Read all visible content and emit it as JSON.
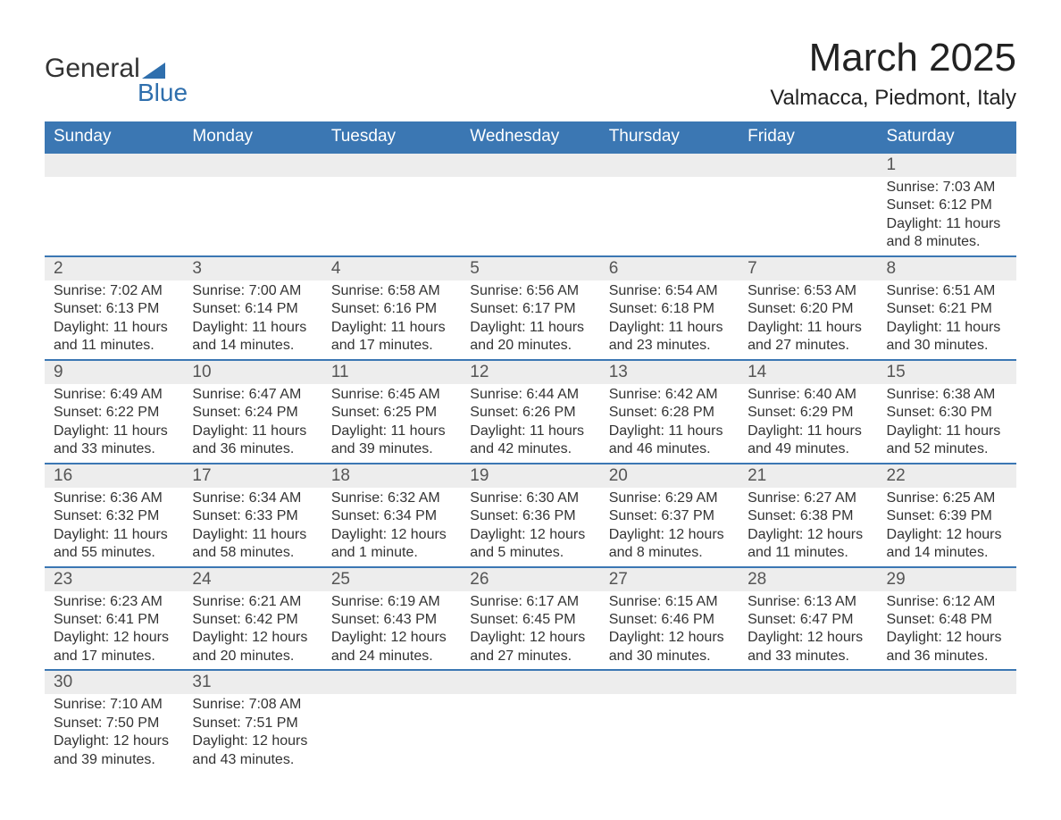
{
  "logo": {
    "word1": "General",
    "word2": "Blue"
  },
  "title": "March 2025",
  "location": "Valmacca, Piedmont, Italy",
  "colors": {
    "header_bg": "#3b77b3",
    "header_text": "#ffffff",
    "daynum_bg": "#ededed",
    "rule": "#3b77b3",
    "text": "#333333",
    "title_text": "#222222",
    "logo_accent": "#2f6fad"
  },
  "fonts": {
    "family": "Arial",
    "title_size_pt": 33,
    "location_size_pt": 18,
    "header_size_pt": 14,
    "daynum_size_pt": 14,
    "body_size_pt": 12
  },
  "days_of_week": [
    "Sunday",
    "Monday",
    "Tuesday",
    "Wednesday",
    "Thursday",
    "Friday",
    "Saturday"
  ],
  "weeks": [
    [
      null,
      null,
      null,
      null,
      null,
      null,
      {
        "n": "1",
        "sunrise": "Sunrise: 7:03 AM",
        "sunset": "Sunset: 6:12 PM",
        "daylight": "Daylight: 11 hours and 8 minutes."
      }
    ],
    [
      {
        "n": "2",
        "sunrise": "Sunrise: 7:02 AM",
        "sunset": "Sunset: 6:13 PM",
        "daylight": "Daylight: 11 hours and 11 minutes."
      },
      {
        "n": "3",
        "sunrise": "Sunrise: 7:00 AM",
        "sunset": "Sunset: 6:14 PM",
        "daylight": "Daylight: 11 hours and 14 minutes."
      },
      {
        "n": "4",
        "sunrise": "Sunrise: 6:58 AM",
        "sunset": "Sunset: 6:16 PM",
        "daylight": "Daylight: 11 hours and 17 minutes."
      },
      {
        "n": "5",
        "sunrise": "Sunrise: 6:56 AM",
        "sunset": "Sunset: 6:17 PM",
        "daylight": "Daylight: 11 hours and 20 minutes."
      },
      {
        "n": "6",
        "sunrise": "Sunrise: 6:54 AM",
        "sunset": "Sunset: 6:18 PM",
        "daylight": "Daylight: 11 hours and 23 minutes."
      },
      {
        "n": "7",
        "sunrise": "Sunrise: 6:53 AM",
        "sunset": "Sunset: 6:20 PM",
        "daylight": "Daylight: 11 hours and 27 minutes."
      },
      {
        "n": "8",
        "sunrise": "Sunrise: 6:51 AM",
        "sunset": "Sunset: 6:21 PM",
        "daylight": "Daylight: 11 hours and 30 minutes."
      }
    ],
    [
      {
        "n": "9",
        "sunrise": "Sunrise: 6:49 AM",
        "sunset": "Sunset: 6:22 PM",
        "daylight": "Daylight: 11 hours and 33 minutes."
      },
      {
        "n": "10",
        "sunrise": "Sunrise: 6:47 AM",
        "sunset": "Sunset: 6:24 PM",
        "daylight": "Daylight: 11 hours and 36 minutes."
      },
      {
        "n": "11",
        "sunrise": "Sunrise: 6:45 AM",
        "sunset": "Sunset: 6:25 PM",
        "daylight": "Daylight: 11 hours and 39 minutes."
      },
      {
        "n": "12",
        "sunrise": "Sunrise: 6:44 AM",
        "sunset": "Sunset: 6:26 PM",
        "daylight": "Daylight: 11 hours and 42 minutes."
      },
      {
        "n": "13",
        "sunrise": "Sunrise: 6:42 AM",
        "sunset": "Sunset: 6:28 PM",
        "daylight": "Daylight: 11 hours and 46 minutes."
      },
      {
        "n": "14",
        "sunrise": "Sunrise: 6:40 AM",
        "sunset": "Sunset: 6:29 PM",
        "daylight": "Daylight: 11 hours and 49 minutes."
      },
      {
        "n": "15",
        "sunrise": "Sunrise: 6:38 AM",
        "sunset": "Sunset: 6:30 PM",
        "daylight": "Daylight: 11 hours and 52 minutes."
      }
    ],
    [
      {
        "n": "16",
        "sunrise": "Sunrise: 6:36 AM",
        "sunset": "Sunset: 6:32 PM",
        "daylight": "Daylight: 11 hours and 55 minutes."
      },
      {
        "n": "17",
        "sunrise": "Sunrise: 6:34 AM",
        "sunset": "Sunset: 6:33 PM",
        "daylight": "Daylight: 11 hours and 58 minutes."
      },
      {
        "n": "18",
        "sunrise": "Sunrise: 6:32 AM",
        "sunset": "Sunset: 6:34 PM",
        "daylight": "Daylight: 12 hours and 1 minute."
      },
      {
        "n": "19",
        "sunrise": "Sunrise: 6:30 AM",
        "sunset": "Sunset: 6:36 PM",
        "daylight": "Daylight: 12 hours and 5 minutes."
      },
      {
        "n": "20",
        "sunrise": "Sunrise: 6:29 AM",
        "sunset": "Sunset: 6:37 PM",
        "daylight": "Daylight: 12 hours and 8 minutes."
      },
      {
        "n": "21",
        "sunrise": "Sunrise: 6:27 AM",
        "sunset": "Sunset: 6:38 PM",
        "daylight": "Daylight: 12 hours and 11 minutes."
      },
      {
        "n": "22",
        "sunrise": "Sunrise: 6:25 AM",
        "sunset": "Sunset: 6:39 PM",
        "daylight": "Daylight: 12 hours and 14 minutes."
      }
    ],
    [
      {
        "n": "23",
        "sunrise": "Sunrise: 6:23 AM",
        "sunset": "Sunset: 6:41 PM",
        "daylight": "Daylight: 12 hours and 17 minutes."
      },
      {
        "n": "24",
        "sunrise": "Sunrise: 6:21 AM",
        "sunset": "Sunset: 6:42 PM",
        "daylight": "Daylight: 12 hours and 20 minutes."
      },
      {
        "n": "25",
        "sunrise": "Sunrise: 6:19 AM",
        "sunset": "Sunset: 6:43 PM",
        "daylight": "Daylight: 12 hours and 24 minutes."
      },
      {
        "n": "26",
        "sunrise": "Sunrise: 6:17 AM",
        "sunset": "Sunset: 6:45 PM",
        "daylight": "Daylight: 12 hours and 27 minutes."
      },
      {
        "n": "27",
        "sunrise": "Sunrise: 6:15 AM",
        "sunset": "Sunset: 6:46 PM",
        "daylight": "Daylight: 12 hours and 30 minutes."
      },
      {
        "n": "28",
        "sunrise": "Sunrise: 6:13 AM",
        "sunset": "Sunset: 6:47 PM",
        "daylight": "Daylight: 12 hours and 33 minutes."
      },
      {
        "n": "29",
        "sunrise": "Sunrise: 6:12 AM",
        "sunset": "Sunset: 6:48 PM",
        "daylight": "Daylight: 12 hours and 36 minutes."
      }
    ],
    [
      {
        "n": "30",
        "sunrise": "Sunrise: 7:10 AM",
        "sunset": "Sunset: 7:50 PM",
        "daylight": "Daylight: 12 hours and 39 minutes."
      },
      {
        "n": "31",
        "sunrise": "Sunrise: 7:08 AM",
        "sunset": "Sunset: 7:51 PM",
        "daylight": "Daylight: 12 hours and 43 minutes."
      },
      null,
      null,
      null,
      null,
      null
    ]
  ]
}
